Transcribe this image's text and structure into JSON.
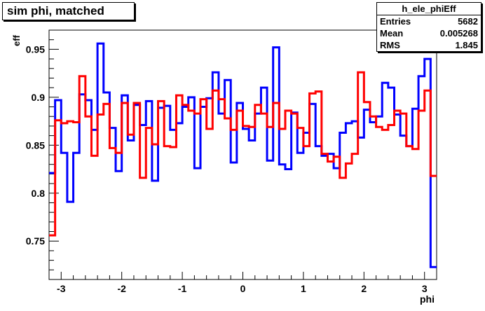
{
  "title": "sim phi, matched",
  "stats": {
    "name": "h_ele_phiEff",
    "rows": [
      {
        "label": "Entries",
        "value": "5682"
      },
      {
        "label": "Mean",
        "value": "0.005268"
      },
      {
        "label": "RMS",
        "value": "1.845"
      }
    ]
  },
  "chart_data": {
    "type": "line",
    "title": "sim phi, matched",
    "xlabel": "phi",
    "ylabel": "eff",
    "xlim": [
      -3.2,
      3.2
    ],
    "ylim": [
      0.71,
      0.97
    ],
    "xticks": [
      -3,
      -2,
      -1,
      0,
      1,
      2,
      3
    ],
    "xtick_labels": [
      "-3",
      "-2",
      "-1",
      "0",
      "1",
      "2",
      "3"
    ],
    "yticks": [
      0.75,
      0.8,
      0.85,
      0.9,
      0.95
    ],
    "ytick_labels": [
      "0.75",
      "0.8",
      "0.85",
      "0.9",
      "0.95"
    ],
    "grid": false,
    "bin_edges": [
      -3.2,
      -3.1,
      -3.0,
      -2.9,
      -2.8,
      -2.7,
      -2.6,
      -2.5,
      -2.4,
      -2.3,
      -2.2,
      -2.1,
      -2.0,
      -1.9,
      -1.8,
      -1.7,
      -1.6,
      -1.5,
      -1.4,
      -1.3,
      -1.2,
      -1.1,
      -1.0,
      -0.9,
      -0.8,
      -0.7,
      -0.6,
      -0.5,
      -0.4,
      -0.3,
      -0.2,
      -0.1,
      0.0,
      0.1,
      0.2,
      0.3,
      0.4,
      0.5,
      0.6,
      0.7,
      0.8,
      0.9,
      1.0,
      1.1,
      1.2,
      1.3,
      1.4,
      1.5,
      1.6,
      1.7,
      1.8,
      1.9,
      2.0,
      2.1,
      2.2,
      2.3,
      2.4,
      2.5,
      2.6,
      2.7,
      2.8,
      2.9,
      3.0,
      3.1,
      3.2
    ],
    "series": [
      {
        "color": "#0000ff",
        "values": [
          0.821,
          0.897,
          0.842,
          0.791,
          0.842,
          0.903,
          0.897,
          0.866,
          0.956,
          0.905,
          0.868,
          0.823,
          0.902,
          0.855,
          0.892,
          0.871,
          0.896,
          0.813,
          0.889,
          0.891,
          0.866,
          0.873,
          0.89,
          0.9,
          0.826,
          0.89,
          0.899,
          0.926,
          0.883,
          0.918,
          0.832,
          0.894,
          0.867,
          0.855,
          0.883,
          0.91,
          0.834,
          0.952,
          0.83,
          0.825,
          0.884,
          0.842,
          0.863,
          0.893,
          0.849,
          0.839,
          0.841,
          0.826,
          0.863,
          0.873,
          0.875,
          0.858,
          0.887,
          0.874,
          0.88,
          0.915,
          0.91,
          0.882,
          0.86,
          0.849,
          0.888,
          0.922,
          0.94,
          0.723
        ]
      },
      {
        "color": "#ff0000",
        "values": [
          0.756,
          0.876,
          0.873,
          0.875,
          0.874,
          0.922,
          0.88,
          0.839,
          0.882,
          0.893,
          0.847,
          0.842,
          0.894,
          0.861,
          0.894,
          0.816,
          0.868,
          0.851,
          0.896,
          0.849,
          0.848,
          0.902,
          0.892,
          0.886,
          0.883,
          0.898,
          0.867,
          0.907,
          0.898,
          0.878,
          0.866,
          0.886,
          0.87,
          0.869,
          0.892,
          0.883,
          0.869,
          0.894,
          0.867,
          0.886,
          0.883,
          0.868,
          0.849,
          0.904,
          0.906,
          0.841,
          0.833,
          0.838,
          0.816,
          0.831,
          0.841,
          0.926,
          0.895,
          0.88,
          0.869,
          0.866,
          0.871,
          0.886,
          0.883,
          0.849,
          0.846,
          0.886,
          0.907,
          0.818
        ]
      }
    ]
  }
}
